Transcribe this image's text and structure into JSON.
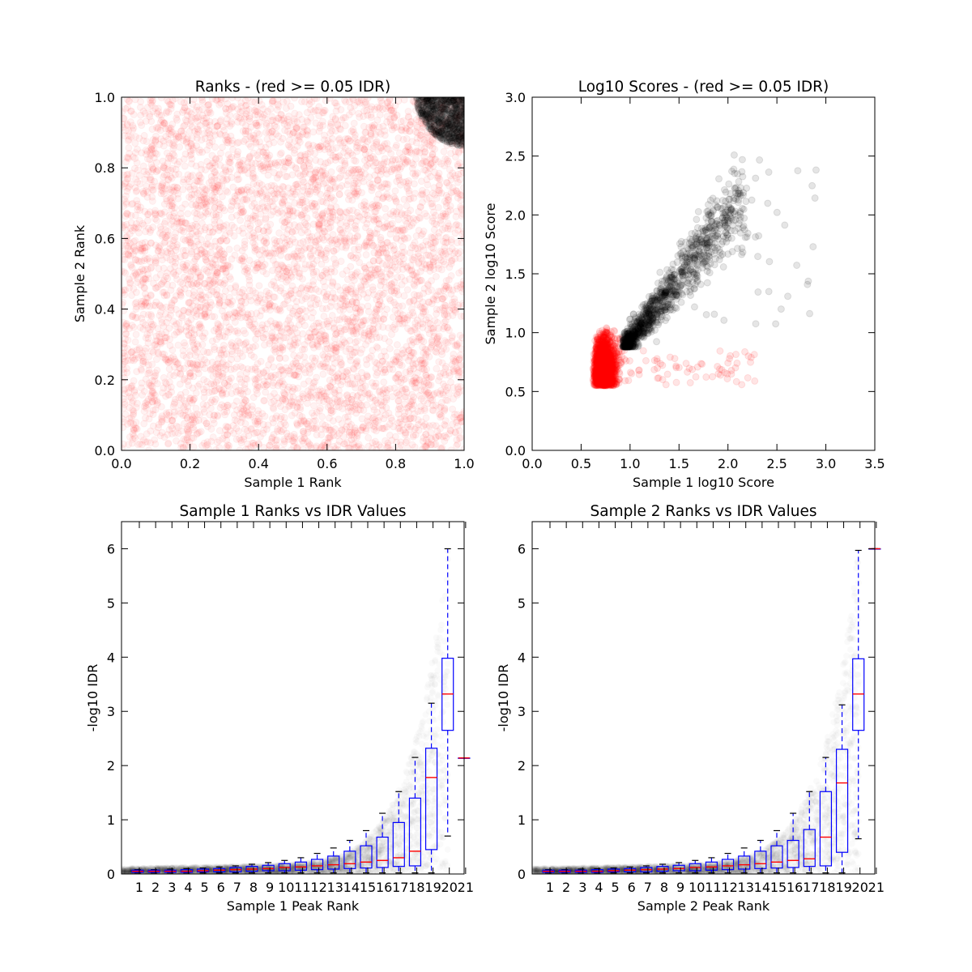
{
  "chart_data": [
    {
      "type": "scatter",
      "title": "Ranks - (red >= 0.05 IDR)",
      "xlabel": "Sample 1 Rank",
      "ylabel": "Sample 2 Rank",
      "xlim": [
        0.0,
        1.0
      ],
      "ylim": [
        0.0,
        1.0
      ],
      "xticks": [
        "0.0",
        "0.2",
        "0.4",
        "0.6",
        "0.8",
        "1.0"
      ],
      "yticks": [
        "0.0",
        "0.2",
        "0.4",
        "0.6",
        "0.8",
        "1.0"
      ],
      "series": [
        {
          "name": "IDR >= 0.05",
          "color": "#ff0000",
          "distribution": "uniform",
          "x_range": [
            0.0,
            1.0
          ],
          "y_range": [
            0.0,
            1.0
          ]
        },
        {
          "name": "IDR < 0.05",
          "color": "#000000",
          "distribution": "top-right corner cluster",
          "center": [
            0.96,
            0.96
          ],
          "radius": 0.15
        }
      ]
    },
    {
      "type": "scatter",
      "title": "Log10 Scores - (red >= 0.05 IDR)",
      "xlabel": "Sample 1 log10 Score",
      "ylabel": "Sample 2 log10 Score",
      "xlim": [
        0.0,
        3.5
      ],
      "ylim": [
        0.0,
        3.0
      ],
      "xticks": [
        "0.0",
        "0.5",
        "1.0",
        "1.5",
        "2.0",
        "2.5",
        "3.0",
        "3.5"
      ],
      "yticks": [
        "0.0",
        "0.5",
        "1.0",
        "1.5",
        "2.0",
        "2.5",
        "3.0"
      ],
      "series": [
        {
          "name": "IDR >= 0.05",
          "color": "#ff0000",
          "core_x": [
            0.62,
            0.95
          ],
          "core_y": [
            0.55,
            1.05
          ],
          "outliers_x_max": 2.3
        },
        {
          "name": "IDR < 0.05",
          "color": "#000000",
          "x_range": [
            0.9,
            2.9
          ],
          "y_range": [
            0.9,
            2.55
          ],
          "trend": "diagonal"
        }
      ]
    },
    {
      "type": "boxplot",
      "title": "Sample 1 Ranks vs IDR Values",
      "xlabel": "Sample 1 Peak Rank",
      "ylabel": "-log10 IDR",
      "ylim": [
        0,
        6.5
      ],
      "yticks": [
        "0",
        "1",
        "2",
        "3",
        "4",
        "5",
        "6"
      ],
      "categories": [
        "1",
        "2",
        "3",
        "4",
        "5",
        "6",
        "7",
        "8",
        "9",
        "10",
        "11",
        "12",
        "13",
        "14",
        "15",
        "16",
        "17",
        "18",
        "19",
        "20",
        "21"
      ],
      "boxes": [
        {
          "q1": 0.03,
          "median": 0.05,
          "q3": 0.07,
          "whislo": 0.02,
          "whishi": 0.08
        },
        {
          "q1": 0.03,
          "median": 0.05,
          "q3": 0.07,
          "whislo": 0.02,
          "whishi": 0.08
        },
        {
          "q1": 0.03,
          "median": 0.05,
          "q3": 0.07,
          "whislo": 0.02,
          "whishi": 0.09
        },
        {
          "q1": 0.03,
          "median": 0.05,
          "q3": 0.08,
          "whislo": 0.02,
          "whishi": 0.1
        },
        {
          "q1": 0.04,
          "median": 0.06,
          "q3": 0.09,
          "whislo": 0.02,
          "whishi": 0.11
        },
        {
          "q1": 0.04,
          "median": 0.07,
          "q3": 0.1,
          "whislo": 0.02,
          "whishi": 0.13
        },
        {
          "q1": 0.04,
          "median": 0.08,
          "q3": 0.12,
          "whislo": 0.02,
          "whishi": 0.15
        },
        {
          "q1": 0.05,
          "median": 0.09,
          "q3": 0.14,
          "whislo": 0.02,
          "whishi": 0.18
        },
        {
          "q1": 0.06,
          "median": 0.1,
          "q3": 0.16,
          "whislo": 0.02,
          "whishi": 0.21
        },
        {
          "q1": 0.06,
          "median": 0.12,
          "q3": 0.19,
          "whislo": 0.02,
          "whishi": 0.25
        },
        {
          "q1": 0.07,
          "median": 0.13,
          "q3": 0.22,
          "whislo": 0.02,
          "whishi": 0.3
        },
        {
          "q1": 0.08,
          "median": 0.15,
          "q3": 0.27,
          "whislo": 0.02,
          "whishi": 0.38
        },
        {
          "q1": 0.09,
          "median": 0.17,
          "q3": 0.33,
          "whislo": 0.02,
          "whishi": 0.48
        },
        {
          "q1": 0.1,
          "median": 0.19,
          "q3": 0.42,
          "whislo": 0.02,
          "whishi": 0.62
        },
        {
          "q1": 0.11,
          "median": 0.22,
          "q3": 0.52,
          "whislo": 0.02,
          "whishi": 0.8
        },
        {
          "q1": 0.12,
          "median": 0.25,
          "q3": 0.68,
          "whislo": 0.02,
          "whishi": 1.12
        },
        {
          "q1": 0.14,
          "median": 0.3,
          "q3": 0.95,
          "whislo": 0.02,
          "whishi": 1.52
        },
        {
          "q1": 0.15,
          "median": 0.42,
          "q3": 1.4,
          "whislo": 0.02,
          "whishi": 2.15
        },
        {
          "q1": 0.45,
          "median": 1.78,
          "q3": 2.32,
          "whislo": 0.02,
          "whishi": 3.15
        },
        {
          "q1": 2.65,
          "median": 3.32,
          "q3": 3.98,
          "whislo": 0.7,
          "whishi": 6.0
        },
        {
          "q1": 2.14,
          "median": 2.14,
          "q3": 2.14,
          "whislo": 2.14,
          "whishi": 2.14
        }
      ]
    },
    {
      "type": "boxplot",
      "title": "Sample 2 Ranks vs IDR Values",
      "xlabel": "Sample 2 Peak Rank",
      "ylabel": "-log10 IDR",
      "ylim": [
        0,
        6.5
      ],
      "yticks": [
        "0",
        "1",
        "2",
        "3",
        "4",
        "5",
        "6"
      ],
      "categories": [
        "1",
        "2",
        "3",
        "4",
        "5",
        "6",
        "7",
        "8",
        "9",
        "10",
        "11",
        "12",
        "13",
        "14",
        "15",
        "16",
        "17",
        "18",
        "19",
        "20",
        "21"
      ],
      "boxes": [
        {
          "q1": 0.03,
          "median": 0.05,
          "q3": 0.07,
          "whislo": 0.02,
          "whishi": 0.08
        },
        {
          "q1": 0.03,
          "median": 0.05,
          "q3": 0.07,
          "whislo": 0.02,
          "whishi": 0.08
        },
        {
          "q1": 0.03,
          "median": 0.05,
          "q3": 0.07,
          "whislo": 0.02,
          "whishi": 0.09
        },
        {
          "q1": 0.03,
          "median": 0.05,
          "q3": 0.08,
          "whislo": 0.02,
          "whishi": 0.1
        },
        {
          "q1": 0.04,
          "median": 0.06,
          "q3": 0.09,
          "whislo": 0.02,
          "whishi": 0.11
        },
        {
          "q1": 0.04,
          "median": 0.07,
          "q3": 0.1,
          "whislo": 0.02,
          "whishi": 0.13
        },
        {
          "q1": 0.04,
          "median": 0.08,
          "q3": 0.12,
          "whislo": 0.02,
          "whishi": 0.15
        },
        {
          "q1": 0.05,
          "median": 0.09,
          "q3": 0.14,
          "whislo": 0.02,
          "whishi": 0.18
        },
        {
          "q1": 0.06,
          "median": 0.1,
          "q3": 0.16,
          "whislo": 0.02,
          "whishi": 0.21
        },
        {
          "q1": 0.06,
          "median": 0.12,
          "q3": 0.19,
          "whislo": 0.02,
          "whishi": 0.25
        },
        {
          "q1": 0.07,
          "median": 0.13,
          "q3": 0.22,
          "whislo": 0.02,
          "whishi": 0.3
        },
        {
          "q1": 0.08,
          "median": 0.15,
          "q3": 0.27,
          "whislo": 0.02,
          "whishi": 0.38
        },
        {
          "q1": 0.09,
          "median": 0.17,
          "q3": 0.33,
          "whislo": 0.02,
          "whishi": 0.48
        },
        {
          "q1": 0.1,
          "median": 0.19,
          "q3": 0.42,
          "whislo": 0.02,
          "whishi": 0.62
        },
        {
          "q1": 0.11,
          "median": 0.22,
          "q3": 0.52,
          "whislo": 0.02,
          "whishi": 0.8
        },
        {
          "q1": 0.12,
          "median": 0.25,
          "q3": 0.62,
          "whislo": 0.02,
          "whishi": 1.12
        },
        {
          "q1": 0.14,
          "median": 0.28,
          "q3": 0.82,
          "whislo": 0.02,
          "whishi": 1.52
        },
        {
          "q1": 0.15,
          "median": 0.68,
          "q3": 1.52,
          "whislo": 0.02,
          "whishi": 2.15
        },
        {
          "q1": 0.4,
          "median": 1.68,
          "q3": 2.3,
          "whislo": 0.02,
          "whishi": 3.12
        },
        {
          "q1": 2.65,
          "median": 3.32,
          "q3": 3.97,
          "whislo": 0.65,
          "whishi": 5.97
        },
        {
          "q1": 6.0,
          "median": 6.0,
          "q3": 6.0,
          "whislo": 6.0,
          "whishi": 6.0
        }
      ]
    }
  ]
}
